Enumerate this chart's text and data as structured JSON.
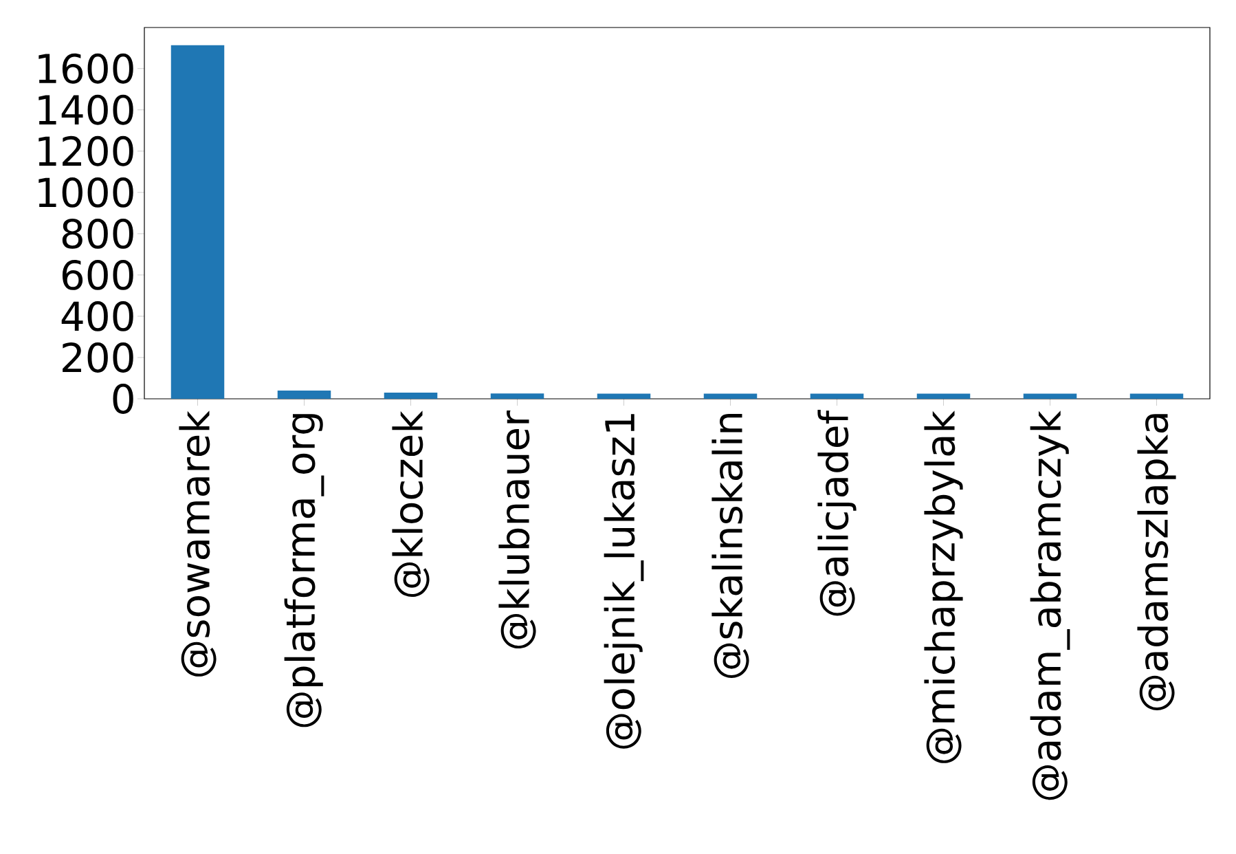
{
  "chart_data": {
    "type": "bar",
    "categories": [
      "@sowamarek",
      "@platforma_org",
      "@kloczek",
      "@klubnauer",
      "@olejnik_lukasz1",
      "@skalinskalin",
      "@alicjadef",
      "@michaprzybylak",
      "@adam_abramczyk",
      "@adamszlapka"
    ],
    "values": [
      1713,
      40,
      30,
      26,
      25,
      25,
      25,
      25,
      25,
      25
    ],
    "color": "#1f77b4",
    "ylim": [
      0,
      1799
    ],
    "yticks": [
      0,
      200,
      400,
      600,
      800,
      1000,
      1200,
      1400,
      1600
    ]
  }
}
